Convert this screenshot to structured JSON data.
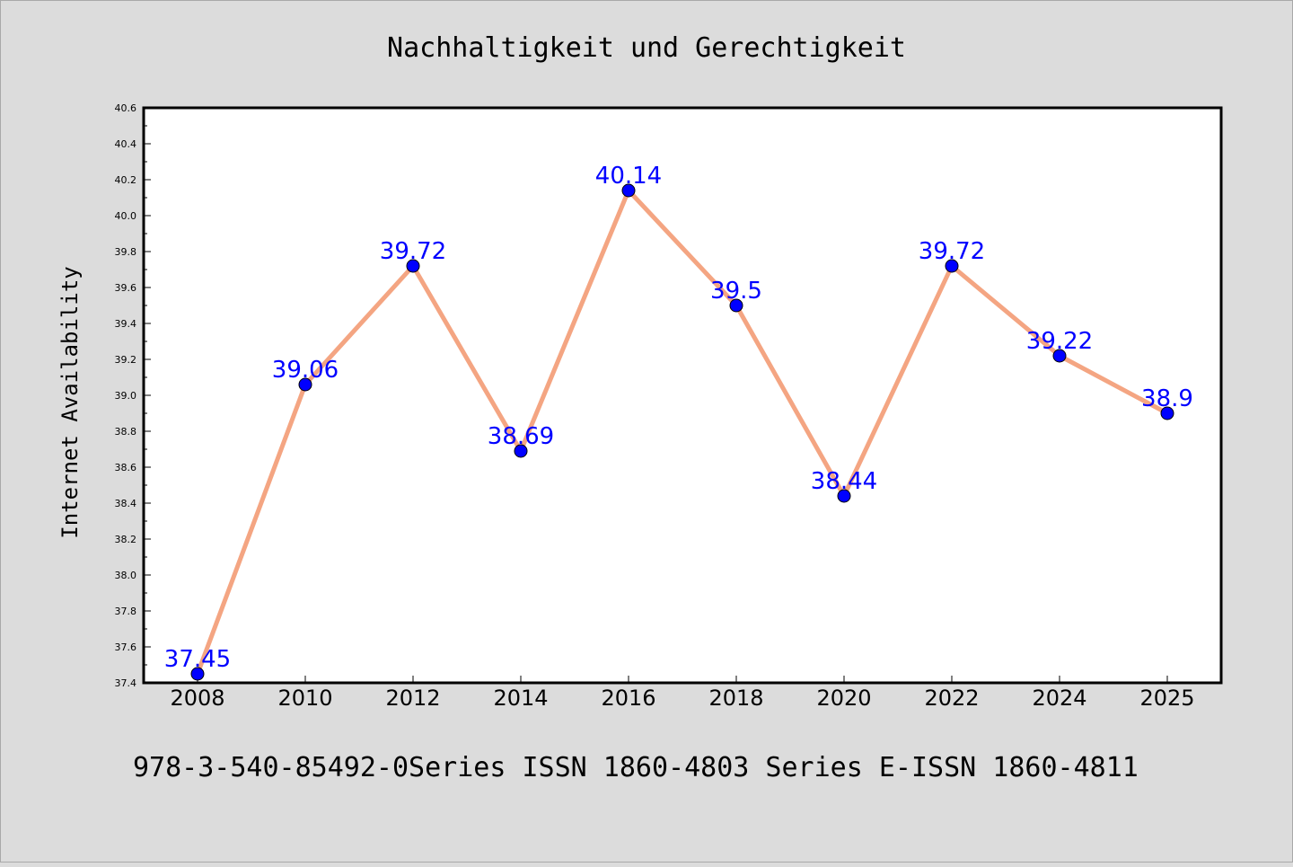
{
  "chart_data": {
    "type": "line",
    "title": "Nachhaltigkeit und Gerechtigkeit",
    "xlabel": "",
    "ylabel": "Internet Availability",
    "footer": "978-3-540-85492-0Series ISSN 1860-4803 Series E-ISSN 1860-4811",
    "categories": [
      "2008",
      "2010",
      "2012",
      "2014",
      "2016",
      "2018",
      "2020",
      "2022",
      "2024",
      "2025"
    ],
    "series": [
      {
        "values": [
          37.45,
          39.06,
          39.72,
          38.69,
          40.14,
          39.5,
          38.44,
          39.72,
          39.22,
          38.9
        ],
        "data_labels": [
          "37.45",
          "39.06",
          "39.72",
          "38.69",
          "40.14",
          "39.5",
          "38.44",
          "39.72",
          "39.22",
          "38.9"
        ]
      }
    ],
    "ylim": [
      37.4,
      40.6
    ],
    "yticks": [
      "37.4",
      "37.6",
      "37.8",
      "38.0",
      "38.2",
      "38.4",
      "38.6",
      "38.8",
      "39.0",
      "39.2",
      "39.4",
      "39.6",
      "39.8",
      "40.0",
      "40.2",
      "40.4",
      "40.6"
    ],
    "grid": false,
    "colors": {
      "line": "#f4a582",
      "marker": "#0000ff",
      "label": "#0000ff",
      "background": "#dcdcdc",
      "plot_background": "#ffffff"
    }
  }
}
